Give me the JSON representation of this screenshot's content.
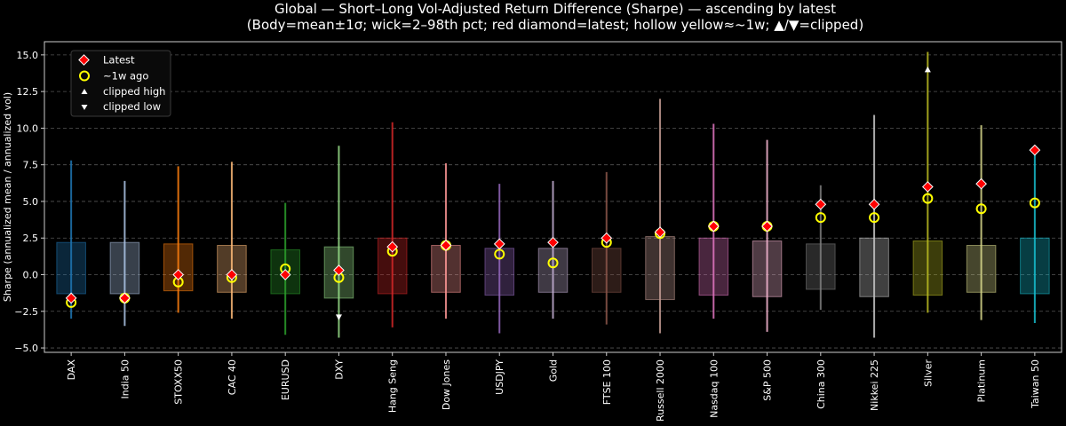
{
  "chart_data": {
    "type": "box",
    "title": "Global — Short–Long Vol-Adjusted Return Difference (Sharpe) — ascending by latest",
    "subtitle": "(Body=mean±1σ; wick=2–98th pct; red diamond=latest; hollow yellow≈~1w; ▲/▼=clipped)",
    "ylabel": "Sharpe (annualized mean / annualized vol)",
    "xlabel": "",
    "ylim": [
      -5.3,
      15.9
    ],
    "yticks": [
      -5.0,
      -2.5,
      0.0,
      2.5,
      5.0,
      7.5,
      10.0,
      12.5,
      15.0
    ],
    "ytick_labels": [
      "−5.0",
      "−2.5",
      "0.0",
      "2.5",
      "5.0",
      "7.5",
      "10.0",
      "12.5",
      "15.0"
    ],
    "grid": true,
    "legend_position": "top-left",
    "legend": [
      {
        "label": "Latest",
        "marker": "red-diamond"
      },
      {
        "label": "~1w ago",
        "marker": "hollow-yellow-circle"
      },
      {
        "label": "clipped high",
        "marker": "white-up-triangle"
      },
      {
        "label": "clipped low",
        "marker": "white-down-triangle"
      }
    ],
    "categories": [
      "DAX",
      "India 50",
      "STOXX50",
      "CAC 40",
      "EURUSD",
      "DXY",
      "Hang Seng",
      "Dow Jones",
      "USDJPY",
      "Gold",
      "FTSE 100",
      "Russell 2000",
      "Nasdaq 100",
      "S&P 500",
      "China 300",
      "Nikkei 225",
      "Silver",
      "Platinum",
      "Taiwan 50"
    ],
    "colors": [
      "#1f77b4",
      "#aec7e8",
      "#ff7f0e",
      "#ffbb78",
      "#2ca02c",
      "#98df8a",
      "#d62728",
      "#ff9896",
      "#9467bd",
      "#c5b0d5",
      "#8c564b",
      "#c49c94",
      "#e377c2",
      "#f7b6d2",
      "#7f7f7f",
      "#c7c7c7",
      "#bcbd22",
      "#dbdb8d",
      "#17becf"
    ],
    "body_low": [
      -1.3,
      -1.3,
      -1.1,
      -1.2,
      -1.3,
      -1.6,
      -1.3,
      -1.2,
      -1.4,
      -1.2,
      -1.2,
      -1.7,
      -1.4,
      -1.5,
      -1.0,
      -1.5,
      -1.4,
      -1.2,
      -1.3
    ],
    "body_high": [
      2.2,
      2.2,
      2.1,
      2.0,
      1.7,
      1.9,
      2.5,
      2.0,
      1.8,
      1.8,
      1.8,
      2.6,
      2.5,
      2.3,
      2.1,
      2.5,
      2.3,
      2.0,
      2.5
    ],
    "wick_low": [
      -3.0,
      -3.5,
      -2.6,
      -3.0,
      -4.1,
      -4.3,
      -3.6,
      -3.0,
      -4.0,
      -3.0,
      -3.4,
      -4.0,
      -3.0,
      -3.9,
      -2.4,
      -4.3,
      -2.6,
      -3.1,
      -3.3
    ],
    "wick_high": [
      7.8,
      6.4,
      7.4,
      7.7,
      4.9,
      8.8,
      10.4,
      7.6,
      6.2,
      6.4,
      7.0,
      12.0,
      10.3,
      9.2,
      6.1,
      10.9,
      15.2,
      10.2,
      8.6
    ],
    "latest": [
      -1.6,
      -1.6,
      0.0,
      0.0,
      0.0,
      0.3,
      1.9,
      2.0,
      2.1,
      2.2,
      2.5,
      2.9,
      3.3,
      3.3,
      4.8,
      4.8,
      6.0,
      6.2,
      8.5
    ],
    "week_ago": [
      -1.9,
      -1.6,
      -0.5,
      -0.2,
      0.4,
      -0.2,
      1.6,
      2.0,
      1.4,
      0.8,
      2.2,
      2.8,
      3.3,
      3.3,
      3.9,
      3.9,
      5.2,
      4.5,
      4.9
    ],
    "clipped_high": [
      "Silver"
    ],
    "clipped_low": [
      "DXY"
    ]
  }
}
